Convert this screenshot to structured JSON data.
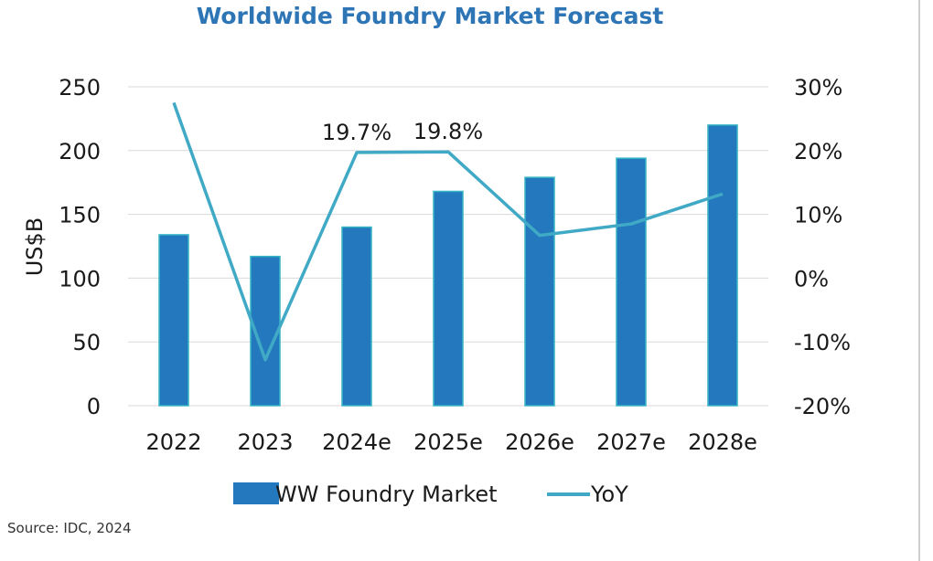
{
  "chart_data": {
    "type": "bar+line",
    "title": "Worldwide Foundry Market Forecast",
    "ylabel": "US$B",
    "y2label": "",
    "source": "Source: IDC, 2024",
    "categories": [
      "2022",
      "2023",
      "2024e",
      "2025e",
      "2026e",
      "2027e",
      "2028e"
    ],
    "ylim": [
      0,
      250
    ],
    "yticks": [
      0,
      50,
      100,
      150,
      200,
      250
    ],
    "y2lim": [
      -20,
      30
    ],
    "y2ticks": [
      "-20%",
      "-10%",
      "0%",
      "10%",
      "20%",
      "30%"
    ],
    "y2tick_values": [
      -20,
      -10,
      0,
      10,
      20,
      30
    ],
    "grid": true,
    "legend_position": "bottom",
    "series": [
      {
        "name": "WW Foundry Market",
        "type": "bar",
        "axis": "left",
        "values": [
          134,
          117,
          140,
          168,
          179,
          194,
          220
        ]
      },
      {
        "name": "YoY",
        "type": "line",
        "axis": "right",
        "values": [
          27.5,
          -12.8,
          19.7,
          19.8,
          6.7,
          8.5,
          13.2
        ]
      }
    ],
    "data_labels": [
      {
        "category": "2024e",
        "text": "19.7%"
      },
      {
        "category": "2025e",
        "text": "19.8%"
      }
    ],
    "colors": {
      "bar": "#2479be",
      "bar_edge": "#35b4c6",
      "line": "#40a9c5",
      "grid": "#d9d9d9",
      "title": "#2e75b6"
    }
  }
}
